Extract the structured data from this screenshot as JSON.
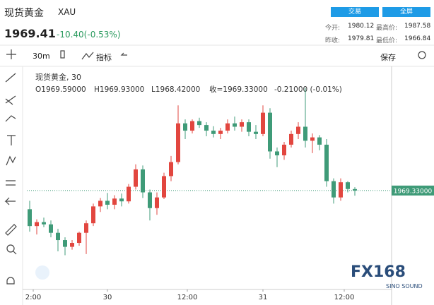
{
  "header": {
    "name": "现货黄金",
    "symbol": "XAU",
    "price": "1969.41",
    "change": "-10.40(-0.53%)",
    "buttons": [
      "交易",
      "全屏"
    ],
    "stats": [
      [
        "今开:",
        "1980.12",
        "最高价:",
        "1987.58"
      ],
      [
        "昨收:",
        "1979.81",
        "最低价:",
        "1966.84"
      ]
    ]
  },
  "toolbar": {
    "interval": "30m",
    "indicators": "指标",
    "save": "保存"
  },
  "legend": {
    "title": "现货黄金, 30",
    "open": "O1969.59000",
    "high": "H1969.93000",
    "low": "L1968.42000",
    "close": "收=1969.33000",
    "change": "-0.21000 (-0.01%)"
  },
  "watermark": {
    "brand": "FX168",
    "sub": "SINO SOUND"
  },
  "chart_data": {
    "type": "candlestick",
    "up_color": "#e2463f",
    "down_color": "#3f9b78",
    "ylim": [
      1951.7,
      1990.7
    ],
    "xlim": [
      -0.4,
      46.4
    ],
    "xticks": [
      {
        "value": 0.5,
        "label": "2:00"
      },
      {
        "value": 11,
        "label": "30"
      },
      {
        "value": 22.3,
        "label": "12:00"
      },
      {
        "value": 33,
        "label": "31"
      },
      {
        "value": 44.5,
        "label": "12:00"
      }
    ],
    "last_price": {
      "value": 1969.33,
      "label": "1969.33000"
    },
    "candles": [
      [
        1966.0,
        1967.5,
        1962.0,
        1963.0
      ],
      [
        1963.0,
        1964.2,
        1961.5,
        1963.7
      ],
      [
        1963.7,
        1964.5,
        1962.8,
        1963.3
      ],
      [
        1963.3,
        1964.0,
        1961.0,
        1961.8
      ],
      [
        1961.8,
        1962.5,
        1958.5,
        1960.5
      ],
      [
        1960.5,
        1961.0,
        1957.8,
        1959.3
      ],
      [
        1959.3,
        1960.5,
        1958.8,
        1960.0
      ],
      [
        1960.0,
        1962.0,
        1959.5,
        1961.8
      ],
      [
        1961.8,
        1964.0,
        1958.0,
        1963.5
      ],
      [
        1963.5,
        1967.0,
        1963.0,
        1966.5
      ],
      [
        1966.5,
        1968.0,
        1965.5,
        1967.5
      ],
      [
        1967.5,
        1968.9,
        1966.0,
        1966.8
      ],
      [
        1966.8,
        1968.5,
        1966.0,
        1967.9
      ],
      [
        1967.9,
        1968.8,
        1966.5,
        1967.4
      ],
      [
        1967.4,
        1970.5,
        1967.0,
        1970.0
      ],
      [
        1970.0,
        1974.0,
        1969.5,
        1973.1
      ],
      [
        1973.1,
        1973.8,
        1968.0,
        1969.0
      ],
      [
        1969.0,
        1969.5,
        1964.0,
        1966.2
      ],
      [
        1966.2,
        1969.0,
        1965.0,
        1968.1
      ],
      [
        1968.1,
        1972.5,
        1967.8,
        1971.9
      ],
      [
        1971.9,
        1975.5,
        1971.0,
        1974.4
      ],
      [
        1974.4,
        1984.5,
        1974.0,
        1981.3
      ],
      [
        1981.3,
        1982.0,
        1978.5,
        1980.0
      ],
      [
        1980.0,
        1982.0,
        1979.5,
        1981.7
      ],
      [
        1981.7,
        1982.3,
        1980.5,
        1981.0
      ],
      [
        1981.0,
        1981.5,
        1979.0,
        1980.0
      ],
      [
        1980.0,
        1980.8,
        1978.8,
        1979.4
      ],
      [
        1979.4,
        1980.5,
        1978.5,
        1980.0
      ],
      [
        1980.0,
        1982.0,
        1979.5,
        1981.3
      ],
      [
        1981.3,
        1982.5,
        1980.0,
        1980.7
      ],
      [
        1980.7,
        1982.0,
        1979.8,
        1981.5
      ],
      [
        1981.5,
        1982.0,
        1979.0,
        1979.8
      ],
      [
        1979.8,
        1981.0,
        1978.5,
        1979.4
      ],
      [
        1979.4,
        1984.5,
        1979.0,
        1983.2
      ],
      [
        1983.2,
        1984.0,
        1975.0,
        1976.3
      ],
      [
        1976.3,
        1977.0,
        1973.5,
        1975.6
      ],
      [
        1975.6,
        1978.0,
        1974.8,
        1977.5
      ],
      [
        1977.5,
        1980.0,
        1977.0,
        1979.4
      ],
      [
        1979.4,
        1981.5,
        1978.5,
        1980.7
      ],
      [
        1980.7,
        1987.6,
        1977.0,
        1978.2
      ],
      [
        1978.2,
        1979.5,
        1976.0,
        1978.8
      ],
      [
        1978.8,
        1979.2,
        1976.5,
        1977.5
      ],
      [
        1977.5,
        1978.5,
        1970.0,
        1971.0
      ],
      [
        1971.0,
        1971.5,
        1967.0,
        1968.1
      ],
      [
        1968.1,
        1971.5,
        1967.5,
        1970.8
      ],
      [
        1970.8,
        1971.0,
        1969.0,
        1969.6
      ],
      [
        1969.59,
        1969.93,
        1968.42,
        1969.33
      ]
    ]
  }
}
